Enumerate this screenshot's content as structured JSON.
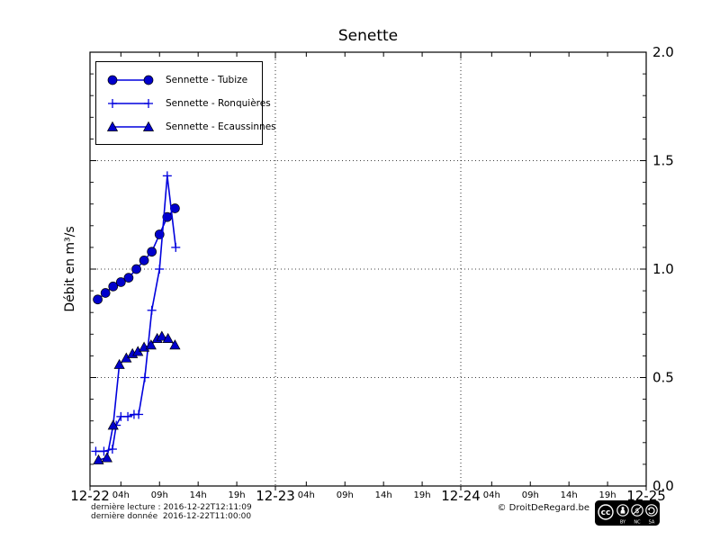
{
  "title": "Senette",
  "ylabel": "Débit en m³/s",
  "footer": {
    "line1": "dernière lecture : 2016-12-22T12:11:09",
    "line2": "dernière donnée  2016-12-22T11:00:00",
    "copyright": "© DroitDeRegard.be",
    "license": "CC BY-NC-SA",
    "cc_label": "cc",
    "license_labels": [
      "BY",
      "NC",
      "SA"
    ]
  },
  "colors": {
    "line": "#0000dd",
    "marker_fill": "#0000cc",
    "marker_edge": "#000000",
    "axis": "#000000",
    "grid": "#000000",
    "background": "#ffffff"
  },
  "chart_data": {
    "type": "line",
    "title": "Senette",
    "ylabel": "Débit en m³/s",
    "xlabel": "",
    "x_unit": "hours since 2016-12-22 00:00",
    "xlim": [
      0,
      72
    ],
    "ylim": [
      0.0,
      2.0
    ],
    "y_major_ticks": [
      0.0,
      0.5,
      1.0,
      1.5,
      2.0
    ],
    "y_tick_labels": [
      "0.0",
      "0.5",
      "1.0",
      "1.5",
      "2.0"
    ],
    "y_minor_step": 0.1,
    "x_day_ticks": [
      {
        "hour": 0,
        "label": "12-22"
      },
      {
        "hour": 24,
        "label": "12-23"
      },
      {
        "hour": 48,
        "label": "12-24"
      },
      {
        "hour": 72,
        "label": "12-25"
      }
    ],
    "x_hour_ticks": [
      {
        "hour": 4,
        "label": "04h"
      },
      {
        "hour": 9,
        "label": "09h"
      },
      {
        "hour": 14,
        "label": "14h"
      },
      {
        "hour": 19,
        "label": "19h"
      },
      {
        "hour": 28,
        "label": "04h"
      },
      {
        "hour": 33,
        "label": "09h"
      },
      {
        "hour": 38,
        "label": "14h"
      },
      {
        "hour": 43,
        "label": "19h"
      },
      {
        "hour": 52,
        "label": "04h"
      },
      {
        "hour": 57,
        "label": "09h"
      },
      {
        "hour": 62,
        "label": "14h"
      },
      {
        "hour": 67,
        "label": "19h"
      }
    ],
    "grid": {
      "horizontal_at": [
        0.5,
        1.0,
        1.5
      ],
      "vertical_at_hours": [
        24,
        48
      ],
      "style": "dotted"
    },
    "legend_position": "upper left",
    "series": [
      {
        "name": "Sennette - Tubize",
        "marker": "circle",
        "x": [
          1,
          2,
          3,
          4,
          5,
          6,
          7,
          8,
          9,
          10,
          11
        ],
        "y": [
          0.86,
          0.89,
          0.92,
          0.94,
          0.96,
          1.0,
          1.04,
          1.08,
          1.16,
          1.24,
          1.28
        ]
      },
      {
        "name": "Sennette - Ronquières",
        "marker": "plus",
        "x": [
          0.75,
          1.8,
          2.9,
          3.4,
          4,
          4.9,
          5.7,
          6.3,
          7.1,
          8,
          9,
          10,
          11.1
        ],
        "y": [
          0.16,
          0.16,
          0.17,
          0.28,
          0.32,
          0.32,
          0.33,
          0.33,
          0.5,
          0.81,
          1.0,
          1.43,
          1.1
        ]
      },
      {
        "name": "Sennette - Ecaussinnes",
        "marker": "triangle",
        "x": [
          1.1,
          2.2,
          3,
          3.8,
          4.7,
          5.5,
          6.2,
          7,
          7.9,
          8.7,
          9.3,
          10.1,
          11
        ],
        "y": [
          0.12,
          0.13,
          0.28,
          0.56,
          0.59,
          0.61,
          0.62,
          0.64,
          0.65,
          0.68,
          0.69,
          0.68,
          0.65
        ]
      }
    ]
  }
}
